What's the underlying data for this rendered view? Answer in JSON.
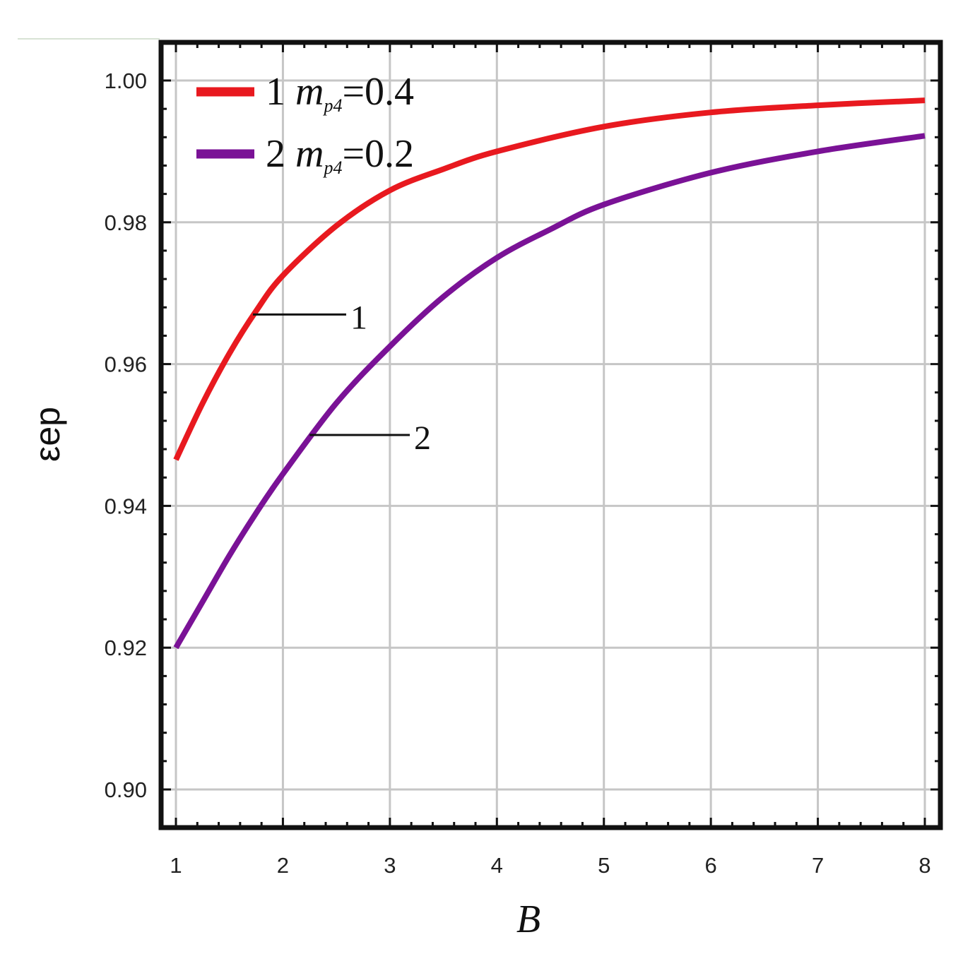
{
  "chart_data": {
    "type": "line",
    "xlabel": "B",
    "ylabel_main": "ε",
    "ylabel_sub": "ep",
    "xlim": [
      1,
      8
    ],
    "ylim": [
      0.9,
      1.0
    ],
    "xticks": [
      "1",
      "2",
      "3",
      "4",
      "5",
      "6",
      "7",
      "8"
    ],
    "yticks": [
      "0.90",
      "0.92",
      "0.94",
      "0.96",
      "0.98",
      "1.00"
    ],
    "grid": true,
    "legend_position": "top-left",
    "series": [
      {
        "name": "1 m_p4 =0.4",
        "legend": {
          "num": "1",
          "var": "m",
          "sub": "p4",
          "eq": "=0.4"
        },
        "annotation": "1",
        "annotation_at": [
          1.72,
          0.967
        ],
        "color": "#e8191f",
        "x": [
          1.0,
          1.25,
          1.5,
          1.75,
          2.0,
          2.5,
          3.0,
          3.5,
          4.0,
          5.0,
          6.0,
          7.0,
          8.0
        ],
        "y": [
          0.9465,
          0.9545,
          0.9615,
          0.9675,
          0.9725,
          0.9795,
          0.9845,
          0.9875,
          0.99,
          0.9935,
          0.9955,
          0.9965,
          0.9972
        ]
      },
      {
        "name": "2 m_p4 =0.2",
        "legend": {
          "num": "2",
          "var": "m",
          "sub": "p4",
          "eq": "=0.2"
        },
        "annotation": "2",
        "annotation_at": [
          2.25,
          0.95
        ],
        "color": "#7a1296",
        "x": [
          1.0,
          1.25,
          1.5,
          1.75,
          2.0,
          2.5,
          3.0,
          3.5,
          4.0,
          4.5,
          5.0,
          6.0,
          7.0,
          8.0
        ],
        "y": [
          0.92,
          0.9265,
          0.933,
          0.939,
          0.9445,
          0.9545,
          0.9625,
          0.9695,
          0.975,
          0.979,
          0.9825,
          0.987,
          0.99,
          0.9922
        ]
      }
    ]
  }
}
